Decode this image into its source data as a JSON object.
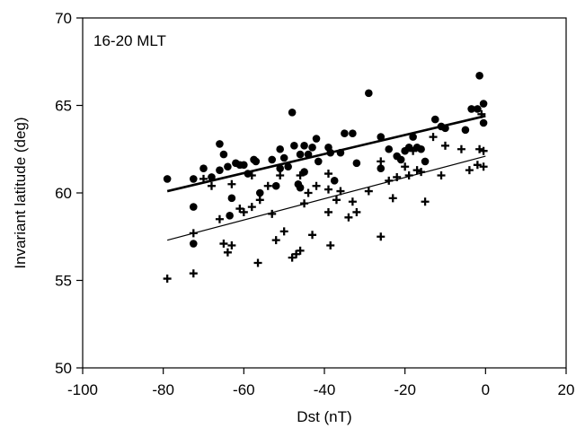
{
  "chart_data": {
    "type": "scatter",
    "panel_label": "16-20 MLT",
    "xlabel": "Dst (nT)",
    "ylabel": "Invariant latitude (deg)",
    "xlim": [
      -100,
      20
    ],
    "ylim": [
      50,
      70
    ],
    "x_ticks": [
      -100,
      -80,
      -60,
      -40,
      -20,
      0,
      20
    ],
    "y_ticks": [
      50,
      55,
      60,
      65,
      70
    ],
    "x_tick_labels": [
      "-100",
      "-80",
      "-60",
      "-40",
      "-20",
      "0",
      "20"
    ],
    "y_tick_labels": [
      "50",
      "55",
      "60",
      "65",
      "70"
    ],
    "grid": false,
    "series": [
      {
        "marker": "circle",
        "points": [
          [
            -79,
            60.8
          ],
          [
            -72.5,
            60.8
          ],
          [
            -72.5,
            59.2
          ],
          [
            -72.5,
            57.1
          ],
          [
            -70,
            61.4
          ],
          [
            -68,
            60.9
          ],
          [
            -66,
            62.8
          ],
          [
            -66,
            61.3
          ],
          [
            -65,
            62.2
          ],
          [
            -64,
            61.5
          ],
          [
            -63,
            59.7
          ],
          [
            -63.5,
            58.7
          ],
          [
            -62,
            61.7
          ],
          [
            -61,
            61.6
          ],
          [
            -60,
            61.6
          ],
          [
            -59,
            61.1
          ],
          [
            -57.5,
            61.9
          ],
          [
            -57,
            61.8
          ],
          [
            -56,
            60.0
          ],
          [
            -53,
            61.9
          ],
          [
            -52,
            60.4
          ],
          [
            -51,
            61.4
          ],
          [
            -51,
            62.5
          ],
          [
            -50,
            62.0
          ],
          [
            -49,
            61.5
          ],
          [
            -48,
            64.6
          ],
          [
            -47.5,
            62.7
          ],
          [
            -46.5,
            60.5
          ],
          [
            -46,
            62.2
          ],
          [
            -46,
            60.3
          ],
          [
            -45,
            61.2
          ],
          [
            -45,
            62.7
          ],
          [
            -44,
            62.2
          ],
          [
            -43,
            62.6
          ],
          [
            -42,
            63.1
          ],
          [
            -41.5,
            61.8
          ],
          [
            -39,
            62.6
          ],
          [
            -38.5,
            62.3
          ],
          [
            -37.5,
            60.7
          ],
          [
            -36,
            62.3
          ],
          [
            -35,
            63.4
          ],
          [
            -33,
            63.4
          ],
          [
            -32,
            61.7
          ],
          [
            -29,
            65.7
          ],
          [
            -26,
            63.2
          ],
          [
            -26,
            61.4
          ],
          [
            -24,
            62.5
          ],
          [
            -22,
            62.1
          ],
          [
            -21,
            61.9
          ],
          [
            -20,
            62.4
          ],
          [
            -19,
            62.6
          ],
          [
            -18,
            63.2
          ],
          [
            -17,
            62.6
          ],
          [
            -16,
            62.5
          ],
          [
            -15,
            61.8
          ],
          [
            -12.5,
            64.2
          ],
          [
            -11,
            63.8
          ],
          [
            -10,
            63.7
          ],
          [
            -5,
            63.6
          ],
          [
            -3.5,
            64.8
          ],
          [
            -2,
            64.8
          ],
          [
            -1.5,
            66.7
          ],
          [
            -0.5,
            65.1
          ],
          [
            -0.5,
            64.0
          ]
        ]
      },
      {
        "marker": "plus",
        "points": [
          [
            -79,
            55.1
          ],
          [
            -72.5,
            57.7
          ],
          [
            -72.5,
            55.4
          ],
          [
            -70,
            60.8
          ],
          [
            -68,
            60.4
          ],
          [
            -66,
            58.5
          ],
          [
            -65,
            57.1
          ],
          [
            -64,
            56.6
          ],
          [
            -63,
            57.0
          ],
          [
            -63,
            60.5
          ],
          [
            -61,
            59.1
          ],
          [
            -60,
            58.9
          ],
          [
            -58,
            59.2
          ],
          [
            -58,
            61.0
          ],
          [
            -56.5,
            56.0
          ],
          [
            -56,
            59.6
          ],
          [
            -54,
            60.4
          ],
          [
            -53,
            58.8
          ],
          [
            -52,
            57.3
          ],
          [
            -51,
            61.0
          ],
          [
            -50,
            57.8
          ],
          [
            -48,
            56.3
          ],
          [
            -47,
            56.5
          ],
          [
            -46,
            56.7
          ],
          [
            -46,
            61.0
          ],
          [
            -45,
            59.4
          ],
          [
            -44,
            60.0
          ],
          [
            -43,
            57.6
          ],
          [
            -42,
            60.4
          ],
          [
            -39,
            61.1
          ],
          [
            -39,
            60.2
          ],
          [
            -39,
            58.9
          ],
          [
            -38.5,
            57.0
          ],
          [
            -37,
            59.6
          ],
          [
            -36,
            60.1
          ],
          [
            -34,
            58.6
          ],
          [
            -33,
            59.5
          ],
          [
            -32,
            58.9
          ],
          [
            -29,
            60.1
          ],
          [
            -26,
            61.8
          ],
          [
            -26,
            57.5
          ],
          [
            -24,
            60.7
          ],
          [
            -23,
            59.7
          ],
          [
            -22,
            60.9
          ],
          [
            -20,
            61.5
          ],
          [
            -19,
            61.0
          ],
          [
            -18,
            62.4
          ],
          [
            -17,
            61.3
          ],
          [
            -16,
            61.2
          ],
          [
            -15,
            59.5
          ],
          [
            -13,
            63.2
          ],
          [
            -11,
            61.0
          ],
          [
            -10,
            62.7
          ],
          [
            -6,
            62.5
          ],
          [
            -4,
            61.3
          ],
          [
            -2,
            61.6
          ],
          [
            -1.5,
            62.5
          ],
          [
            -1,
            64.5
          ],
          [
            -0.5,
            62.4
          ],
          [
            -0.5,
            61.5
          ]
        ]
      }
    ],
    "fit_lines": [
      {
        "style": "thick",
        "x": [
          -79,
          0
        ],
        "y": [
          60.1,
          64.4
        ]
      },
      {
        "style": "thin",
        "x": [
          -79,
          0
        ],
        "y": [
          57.3,
          62.1
        ]
      }
    ]
  }
}
